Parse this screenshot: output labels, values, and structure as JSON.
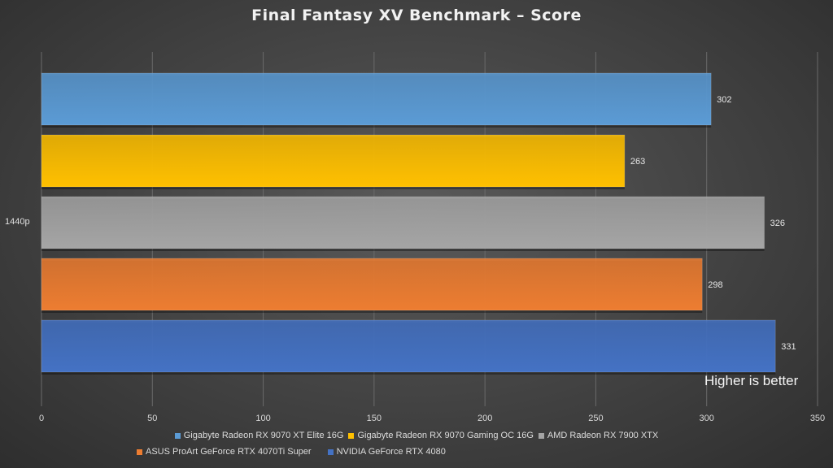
{
  "title": "Final Fantasy XV Benchmark – Score",
  "annotation": "Higher is better",
  "chart_data": {
    "type": "bar",
    "orientation": "horizontal",
    "categories": [
      "1440p"
    ],
    "series": [
      {
        "name": "Gigabyte Radeon RX 9070 XT Elite 16G",
        "values": [
          302
        ],
        "color": "#5b9bd5"
      },
      {
        "name": "Gigabyte Radeon RX 9070 Gaming OC 16G",
        "values": [
          263
        ],
        "color": "#ffc000"
      },
      {
        "name": "AMD Radeon RX 7900 XTX",
        "values": [
          326
        ],
        "color": "#a5a5a5"
      },
      {
        "name": "ASUS ProArt GeForce RTX 4070Ti Super",
        "values": [
          298
        ],
        "color": "#ed7d31"
      },
      {
        "name": "NVIDIA GeForce RTX 4080",
        "values": [
          331
        ],
        "color": "#4472c4"
      }
    ],
    "xlim": [
      0,
      350
    ],
    "xticks": [
      0,
      50,
      100,
      150,
      200,
      250,
      300,
      350
    ],
    "grid": "vertical",
    "legend_position": "bottom"
  }
}
